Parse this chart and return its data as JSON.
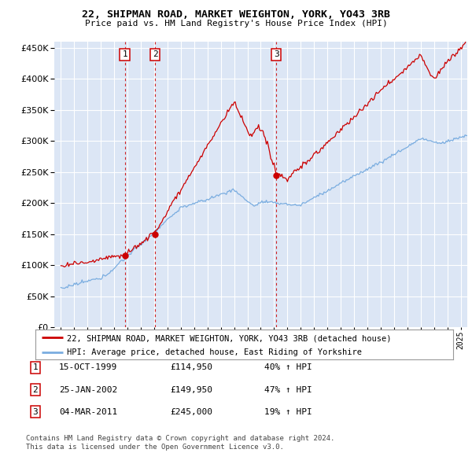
{
  "title": "22, SHIPMAN ROAD, MARKET WEIGHTON, YORK, YO43 3RB",
  "subtitle": "Price paid vs. HM Land Registry's House Price Index (HPI)",
  "legend_line1": "22, SHIPMAN ROAD, MARKET WEIGHTON, YORK, YO43 3RB (detached house)",
  "legend_line2": "HPI: Average price, detached house, East Riding of Yorkshire",
  "transactions": [
    {
      "num": 1,
      "date": "15-OCT-1999",
      "price": "£114,950",
      "change": "40% ↑ HPI",
      "x_year": 1999.79,
      "y_val": 114950
    },
    {
      "num": 2,
      "date": "25-JAN-2002",
      "price": "£149,950",
      "change": "47% ↑ HPI",
      "x_year": 2002.07,
      "y_val": 149950
    },
    {
      "num": 3,
      "date": "04-MAR-2011",
      "price": "£245,000",
      "change": "19% ↑ HPI",
      "x_year": 2011.17,
      "y_val": 245000
    }
  ],
  "footer_line1": "Contains HM Land Registry data © Crown copyright and database right 2024.",
  "footer_line2": "This data is licensed under the Open Government Licence v3.0.",
  "ylim": [
    0,
    460000
  ],
  "xlim": [
    1994.5,
    2025.5
  ],
  "background_color": "#dce6f5",
  "fig_bg": "#ffffff",
  "red_color": "#cc0000",
  "blue_color": "#7aade0",
  "grid_color": "#ffffff",
  "box_color": "#cc0000",
  "ytick_interval": 50000
}
